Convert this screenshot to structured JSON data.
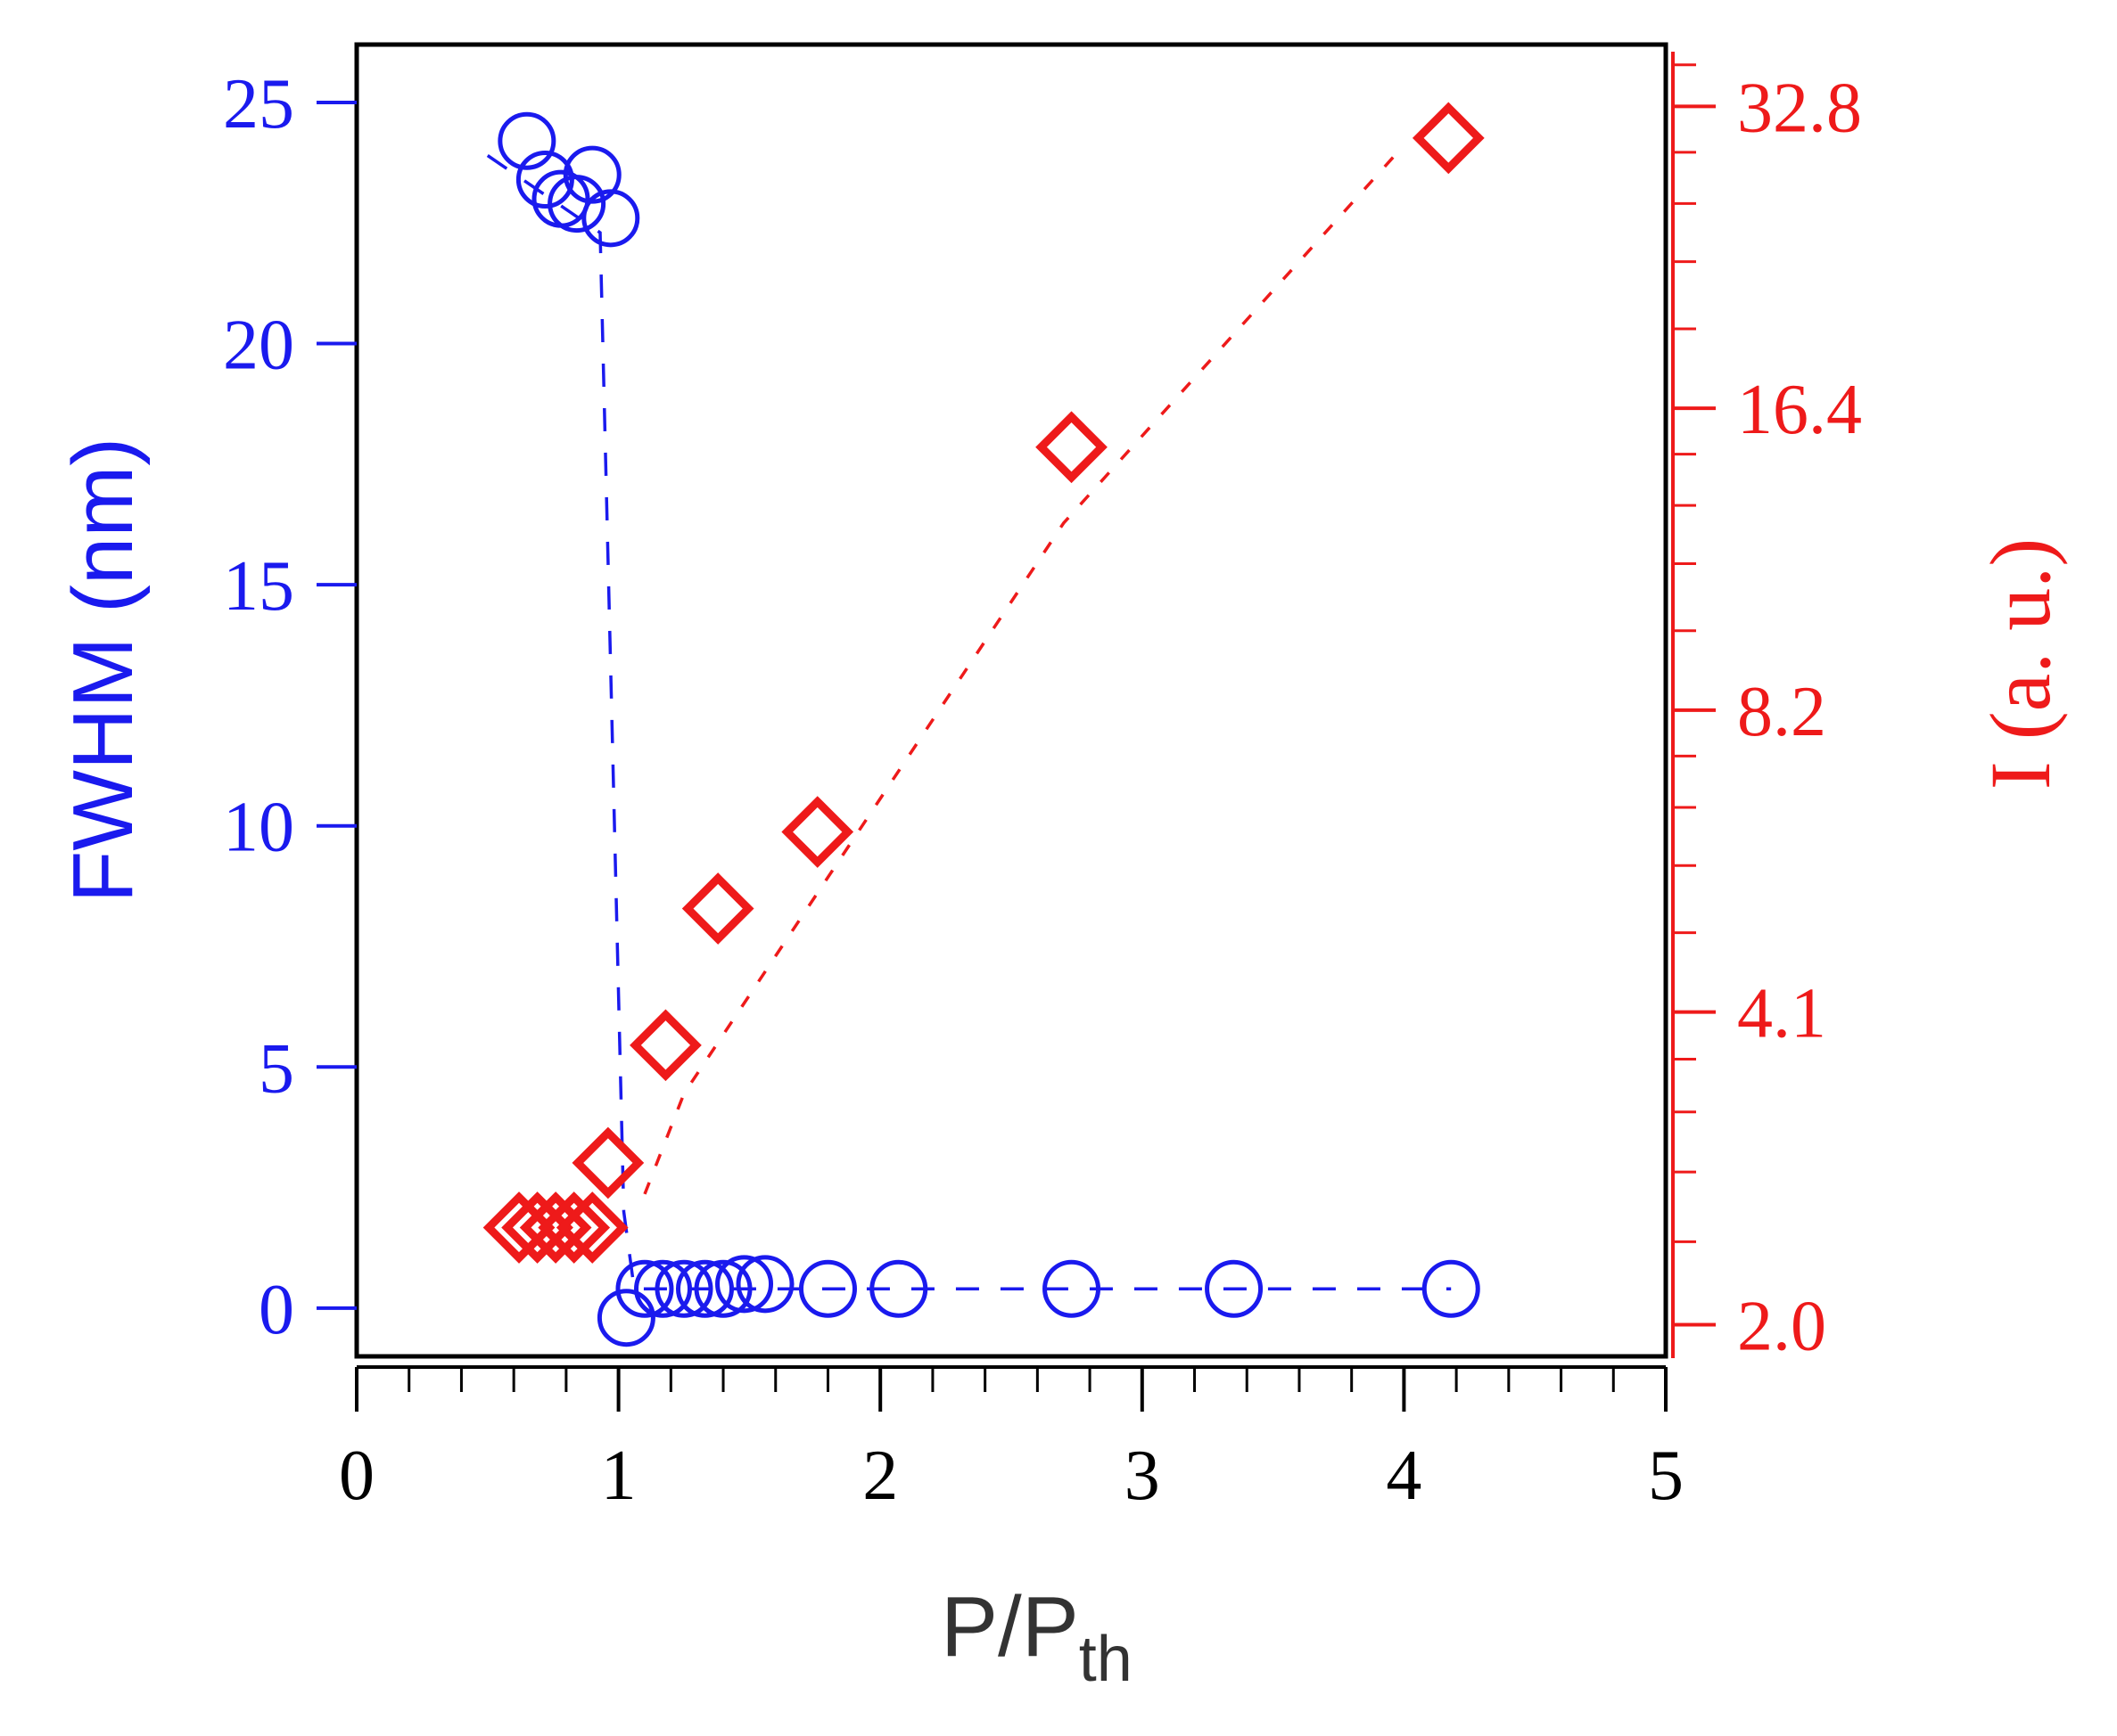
{
  "chart_data": {
    "type": "scatter",
    "xlabel": "P/P",
    "xlabel_sub": "th",
    "ylabel_left": "FWHM (nm)",
    "ylabel_right": "I (a. u.)",
    "xlim": [
      0,
      5
    ],
    "x_ticks": [
      "0",
      "1",
      "2",
      "3",
      "4",
      "5"
    ],
    "y_left_lim": [
      -1.0,
      26.2
    ],
    "y_left_ticks": [
      "0",
      "5",
      "10",
      "15",
      "20",
      "25"
    ],
    "y_right_scale": "log",
    "y_right_lim": [
      1.86,
      37.8
    ],
    "y_right_ticks": [
      "2.0",
      "4.1",
      "8.2",
      "16.4",
      "32.8"
    ],
    "colors": {
      "fwhm": "#1a1aee",
      "intensity": "#ee1a1a",
      "axis": "#000000"
    },
    "series": [
      {
        "axis": "left",
        "marker": "circle",
        "points": [
          [
            0.65,
            24.2
          ],
          [
            0.72,
            23.4
          ],
          [
            0.78,
            23.0
          ],
          [
            0.84,
            22.9
          ],
          [
            0.9,
            23.5
          ],
          [
            0.97,
            22.6
          ],
          [
            1.03,
            -0.2
          ],
          [
            1.1,
            0.4
          ],
          [
            1.17,
            0.4
          ],
          [
            1.25,
            0.4
          ],
          [
            1.33,
            0.4
          ],
          [
            1.4,
            0.4
          ],
          [
            1.48,
            0.5
          ],
          [
            1.56,
            0.5
          ],
          [
            1.8,
            0.4
          ],
          [
            2.07,
            0.4
          ],
          [
            2.73,
            0.4
          ],
          [
            3.35,
            0.4
          ],
          [
            4.18,
            0.4
          ]
        ],
        "fit": [
          [
            0.5,
            23.9
          ],
          [
            0.93,
            22.3
          ],
          [
            1.02,
            2.0
          ],
          [
            1.06,
            0.4
          ],
          [
            4.18,
            0.4
          ]
        ]
      },
      {
        "axis": "right",
        "marker": "diamond",
        "points": [
          [
            0.62,
            2.5
          ],
          [
            0.69,
            2.5
          ],
          [
            0.76,
            2.5
          ],
          [
            0.83,
            2.5
          ],
          [
            0.9,
            2.5
          ],
          [
            0.96,
            2.9
          ],
          [
            1.18,
            3.8
          ],
          [
            1.38,
            5.2
          ],
          [
            1.76,
            6.2
          ],
          [
            2.73,
            15.0
          ],
          [
            4.17,
            30.5
          ]
        ],
        "fit": [
          [
            1.1,
            2.7
          ],
          [
            1.25,
            3.4
          ],
          [
            2.7,
            12.6
          ],
          [
            4.0,
            30.0
          ]
        ]
      }
    ]
  }
}
